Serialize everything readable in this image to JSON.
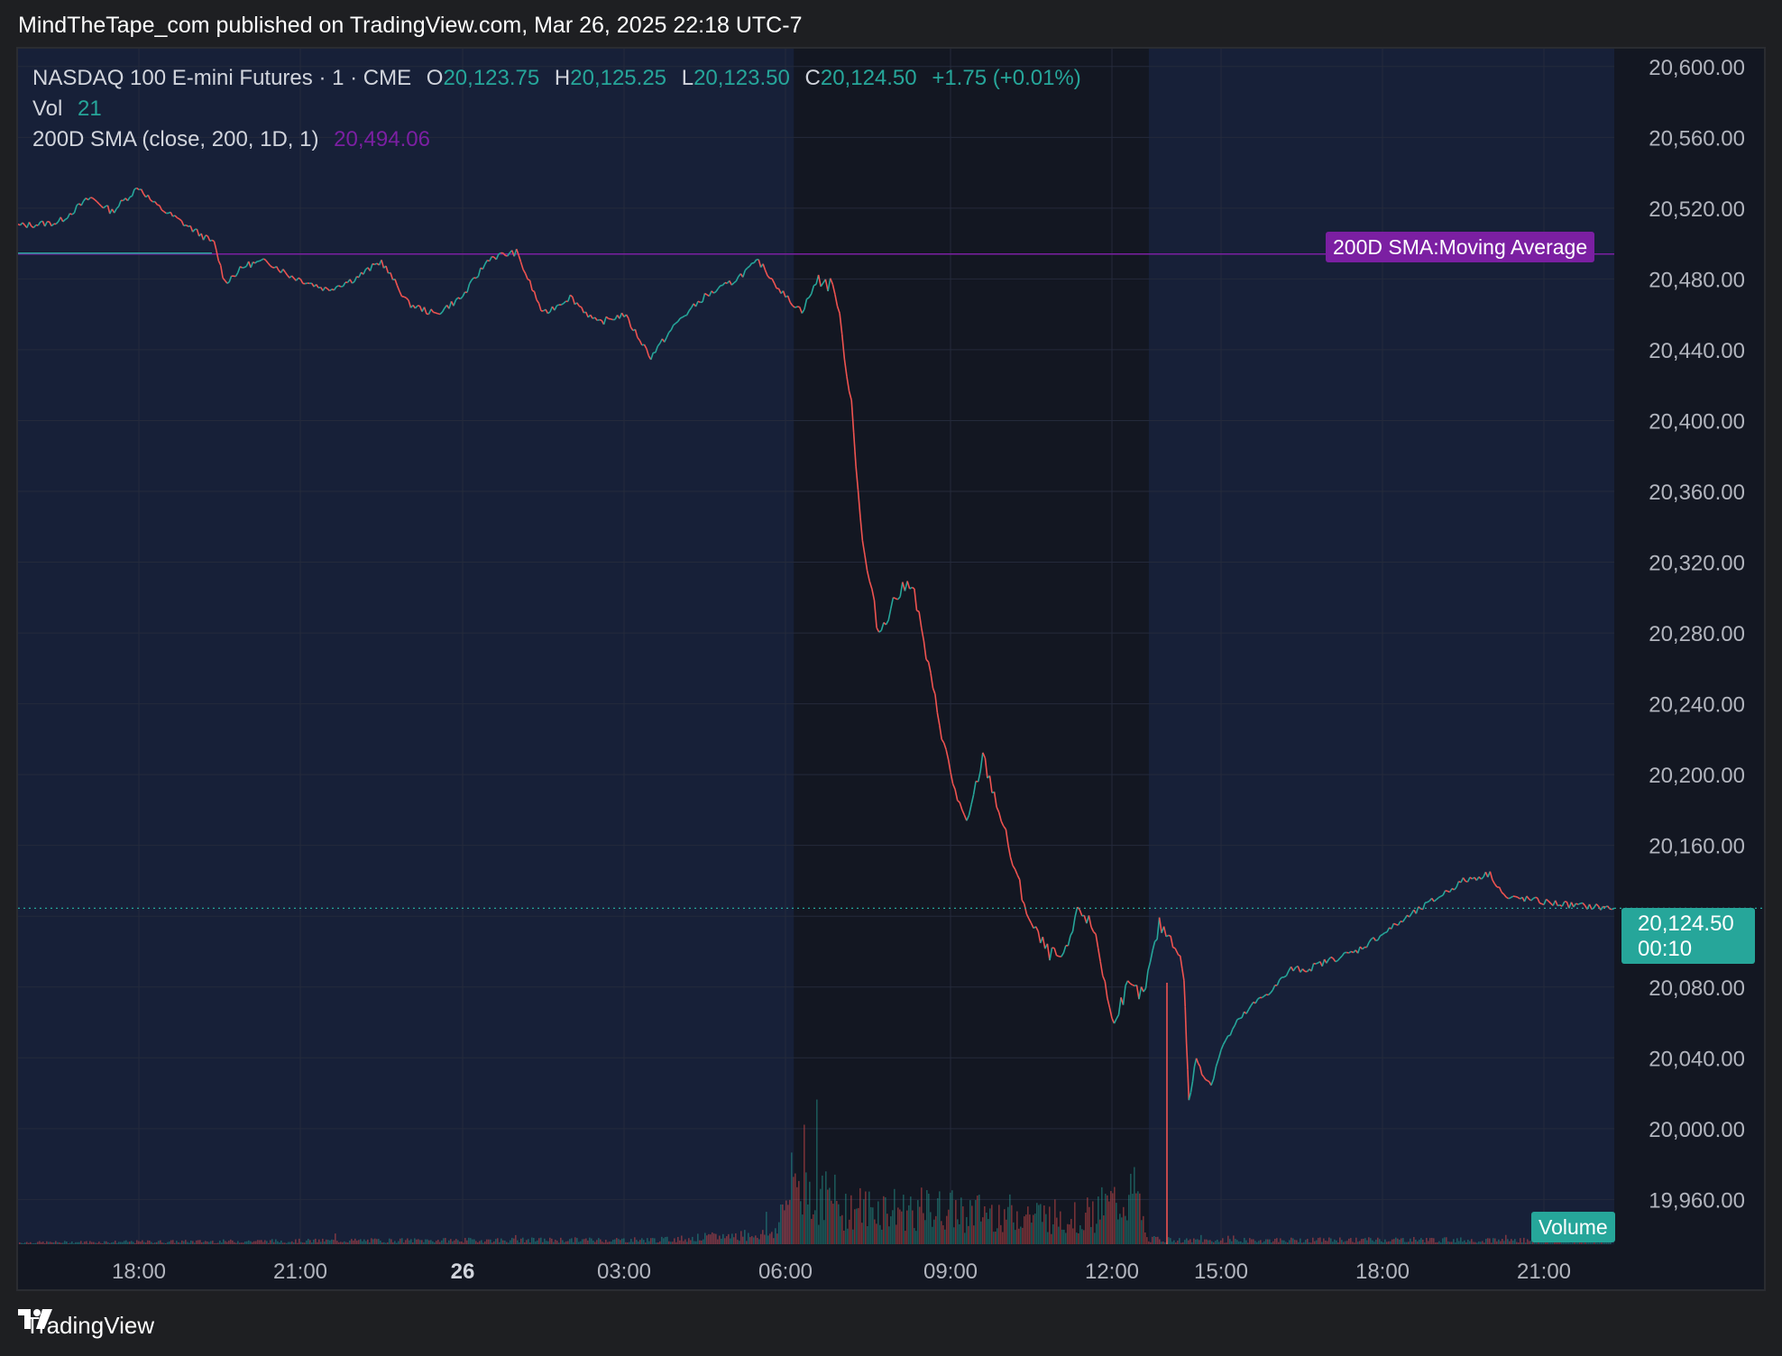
{
  "header": {
    "published_text": "MindTheTape_com published on TradingView.com, Mar 26, 2025 22:18 UTC-7"
  },
  "legend": {
    "symbol": "NASDAQ 100 E-mini Futures · 1 · CME",
    "o_label": "O",
    "o_value": "20,123.75",
    "h_label": "H",
    "h_value": "20,125.25",
    "l_label": "L",
    "l_value": "20,123.50",
    "c_label": "C",
    "c_value": "20,124.50",
    "change": "+1.75 (+0.01%)",
    "vol_label": "Vol",
    "vol_value": "21",
    "sma_label": "200D SMA (close, 200, 1D, 1)",
    "sma_value": "20,494.06"
  },
  "price_tag": {
    "price": "20,124.50",
    "countdown": "00:10"
  },
  "sma_tag": "200D SMA:Moving Average",
  "volume_tag": "Volume",
  "footer": {
    "brand": "TradingView"
  },
  "colors": {
    "up": "#26a69a",
    "down": "#ef5350",
    "sma": "#7b1fa2",
    "session_bg": "#172038",
    "chart_bg": "#131722",
    "grid": "#242a3b",
    "axis_text": "#b2b5be"
  },
  "chart_data": {
    "type": "line",
    "title": "NASDAQ 100 E-mini Futures · 1 · CME",
    "x_ticks": [
      "18:00",
      "21:00",
      "26",
      "03:00",
      "06:00",
      "09:00",
      "12:00",
      "15:00",
      "18:00",
      "21:00"
    ],
    "y_ticks": [
      "20,600.00",
      "20,560.00",
      "20,520.00",
      "20,480.00",
      "20,440.00",
      "20,400.00",
      "20,360.00",
      "20,320.00",
      "20,280.00",
      "20,240.00",
      "20,200.00",
      "20,160.00",
      "20,120.00",
      "20,080.00",
      "20,040.00",
      "20,000.00",
      "19,960.00"
    ],
    "ylim": [
      19950,
      20606
    ],
    "x_range_hours": [
      15.75,
      46.1
    ],
    "series": [
      {
        "type": "price",
        "x_hours": [
          15.75,
          16.5,
          17.1,
          17.5,
          18.0,
          18.3,
          19.0,
          19.4,
          19.6,
          20.0,
          20.4,
          20.8,
          21.5,
          22.0,
          22.5,
          23.0,
          23.5,
          24.0,
          24.5,
          25.0,
          25.5,
          26.0,
          26.5,
          27.0,
          27.5,
          28.0,
          28.5,
          29.0,
          29.5,
          30.0,
          30.3,
          30.6,
          30.9,
          31.2,
          31.4,
          31.7,
          32.0,
          32.3,
          32.6,
          33.0,
          33.3,
          33.6,
          33.9,
          34.2,
          34.5,
          34.8,
          35.1,
          35.4,
          35.7,
          36.0,
          36.3,
          36.6,
          36.9,
          37.2,
          37.5,
          37.7,
          38.0,
          38.3,
          38.6,
          39.0,
          39.3,
          39.6,
          40.0,
          40.3,
          40.6,
          41.0,
          41.5,
          42.0,
          42.5,
          43.0,
          43.5,
          44.0,
          44.3,
          44.6,
          45.0,
          45.5,
          46.1
        ],
        "values": [
          20510,
          20512,
          20526,
          20518,
          20532,
          20522,
          20508,
          20500,
          20478,
          20488,
          20490,
          20482,
          20474,
          20480,
          20490,
          20466,
          20460,
          20470,
          20492,
          20495,
          20460,
          20470,
          20455,
          20460,
          20436,
          20456,
          20470,
          20478,
          20490,
          20470,
          20462,
          20480,
          20475,
          20410,
          20330,
          20280,
          20300,
          20310,
          20260,
          20200,
          20170,
          20210,
          20180,
          20145,
          20115,
          20100,
          20095,
          20125,
          20110,
          20060,
          20080,
          20075,
          20115,
          20105,
          20085,
          20015,
          20040,
          20030,
          20025,
          20045,
          20060,
          20070,
          20080,
          20090,
          20090,
          20095,
          20100,
          20110,
          20120,
          20130,
          20140,
          20144,
          20130,
          20130,
          20128,
          20126,
          20124.5
        ]
      },
      {
        "name": "200D SMA",
        "type": "sma",
        "x_hours": [
          15.75,
          46.1
        ],
        "values": [
          20494.06,
          20494.06
        ]
      }
    ],
    "volume_profile": {
      "x_hours": [
        15.75,
        22.0,
        28.0,
        30.1,
        30.5,
        31.5,
        33.0,
        34.5,
        36.0,
        37.0,
        37.2,
        38.0,
        42.0,
        46.1
      ],
      "values": [
        2,
        4,
        5,
        12,
        70,
        40,
        38,
        34,
        30,
        55,
        6,
        4,
        5,
        4
      ]
    },
    "sessions_dark_hours": [
      [
        30.5,
        37.25
      ]
    ]
  }
}
